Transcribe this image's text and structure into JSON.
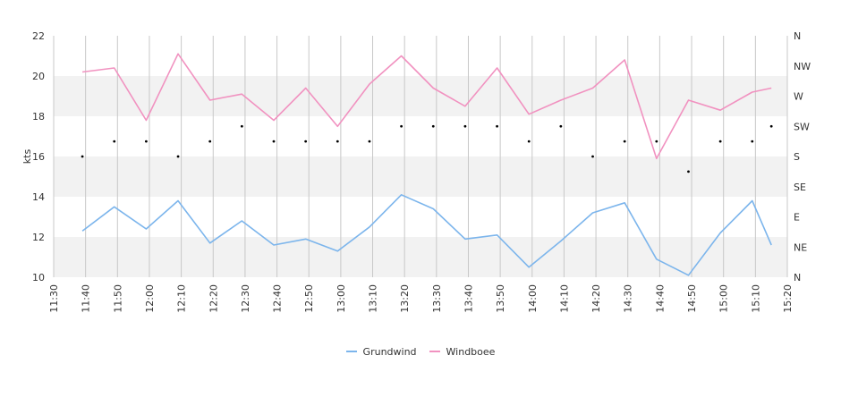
{
  "chart_data": {
    "type": "line",
    "title": "",
    "ylabel": "kts",
    "ylim": [
      10,
      22
    ],
    "yticks": [
      "10",
      "12",
      "14",
      "16",
      "18",
      "20",
      "22"
    ],
    "right_axis_labels": [
      "N",
      "NE",
      "E",
      "SE",
      "S",
      "SW",
      "W",
      "NW",
      "N"
    ],
    "x_ticks": [
      "11:30",
      "11:40",
      "11:50",
      "12:00",
      "12:10",
      "12:20",
      "12:30",
      "12:40",
      "12:50",
      "13:00",
      "13:10",
      "13:20",
      "13:30",
      "13:40",
      "13:50",
      "14:00",
      "14:10",
      "14:20",
      "14:30",
      "14:40",
      "14:50",
      "15:00",
      "15:10",
      "15:20"
    ],
    "x_times": [
      "11:39",
      "11:49",
      "11:59",
      "12:09",
      "12:19",
      "12:29",
      "12:39",
      "12:49",
      "12:59",
      "13:09",
      "13:19",
      "13:29",
      "13:39",
      "13:49",
      "13:59",
      "14:09",
      "14:19",
      "14:29",
      "14:39",
      "14:49",
      "14:59",
      "15:09",
      "15:15"
    ],
    "grid": true,
    "legend_position": "bottom",
    "series": [
      {
        "name": "Grundwind",
        "color": "#7cb5ec",
        "values": [
          12.3,
          13.5,
          12.4,
          13.8,
          11.7,
          12.8,
          11.6,
          11.9,
          11.3,
          12.5,
          14.1,
          13.4,
          11.9,
          12.1,
          10.5,
          11.8,
          13.2,
          13.7,
          10.9,
          10.1,
          12.2,
          13.8,
          11.6
        ]
      },
      {
        "name": "Windboee",
        "color": "#f192c0",
        "values": [
          20.2,
          20.4,
          17.8,
          21.1,
          18.8,
          19.1,
          17.8,
          19.4,
          17.5,
          19.6,
          21.0,
          19.4,
          18.5,
          20.4,
          18.1,
          18.8,
          19.4,
          20.8,
          15.9,
          18.8,
          18.3,
          19.2,
          19.4
        ]
      }
    ],
    "direction_points": {
      "color": "#000000",
      "times": [
        "11:39",
        "11:49",
        "11:59",
        "12:09",
        "12:19",
        "12:29",
        "12:39",
        "12:49",
        "12:59",
        "13:09",
        "13:19",
        "13:29",
        "13:39",
        "13:49",
        "13:59",
        "14:09",
        "14:19",
        "14:29",
        "14:39",
        "14:49",
        "14:59",
        "15:09",
        "15:15"
      ],
      "values": [
        16.0,
        16.75,
        16.75,
        16.0,
        16.75,
        17.5,
        16.75,
        16.75,
        16.75,
        16.75,
        17.5,
        17.5,
        17.5,
        17.5,
        16.75,
        17.5,
        16.0,
        16.75,
        16.75,
        15.25,
        16.75,
        16.75,
        17.5
      ]
    }
  }
}
